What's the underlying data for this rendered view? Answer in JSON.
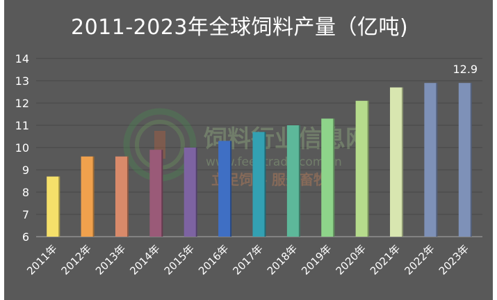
{
  "chart_data": {
    "type": "bar",
    "title": "2011-2023年全球饲料产量（亿吨)",
    "categories": [
      "2011年",
      "2012年",
      "2013年",
      "2014年",
      "2015年",
      "2016年",
      "2017年",
      "2018年",
      "2019年",
      "2020年",
      "2021年",
      "2022年",
      "2023年"
    ],
    "values": [
      8.7,
      9.6,
      9.6,
      9.9,
      10.0,
      10.3,
      10.7,
      11.0,
      11.3,
      12.1,
      12.7,
      12.9,
      12.9
    ],
    "colors": [
      "#f5e06a",
      "#f0a14d",
      "#d98a6a",
      "#9a5a78",
      "#7d63a2",
      "#3f6fc4",
      "#33a1b3",
      "#5db89a",
      "#8ed48a",
      "#b6dc8c",
      "#d8e6b0",
      "#7e91b8",
      "#7e91b8"
    ],
    "data_labels": [
      "",
      "",
      "",
      "",
      "",
      "",
      "",
      "",
      "",
      "",
      "",
      "",
      "12.9"
    ],
    "ylim": [
      6,
      14
    ],
    "yticks": [
      "6",
      "7",
      "8",
      "9",
      "10",
      "11",
      "12",
      "13",
      "14"
    ],
    "grid": true,
    "xlabel": "",
    "ylabel": ""
  },
  "watermark": {
    "line1": "饲料行业信息网",
    "line2": "www.feedtrade.com.cn",
    "line3": "立足饲料  服务畜牧"
  }
}
